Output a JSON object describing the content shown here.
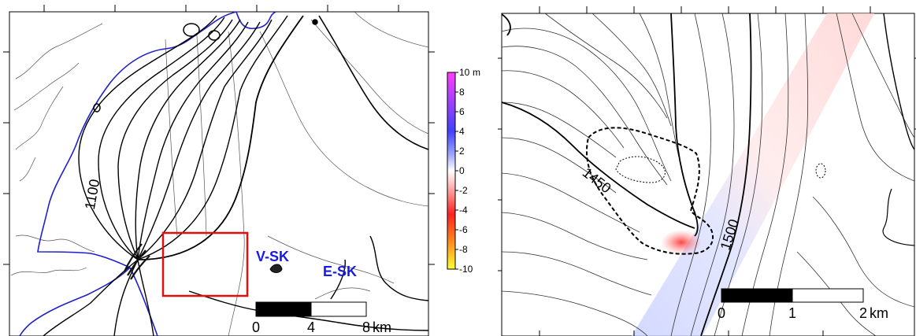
{
  "left_map": {
    "contour_label": "1100",
    "site_labels": [
      "V-SK",
      "E-SK"
    ],
    "site_label_color": "#1a1ae6",
    "outline_color": "#1f1fcc",
    "inset_box_color": "#e01010",
    "scale_bar": {
      "ticks": [
        "0",
        "4",
        "8"
      ],
      "unit": "km"
    }
  },
  "colorbar": {
    "labels": [
      "10",
      "8",
      "6",
      "4",
      "2",
      "0",
      "-2",
      "-4",
      "-6",
      "-8",
      "-10"
    ],
    "unit": "m",
    "colors": [
      "#ff3dff",
      "#a040ff",
      "#4040ff",
      "#a0a8ff",
      "#ffffff",
      "#ffa0a0",
      "#ff2020",
      "#ff8a1e",
      "#ffff30"
    ]
  },
  "right_map": {
    "contour_labels": [
      "1450",
      "1500"
    ],
    "scale_bar": {
      "ticks": [
        "0",
        "1",
        "2"
      ],
      "unit": "km"
    }
  }
}
